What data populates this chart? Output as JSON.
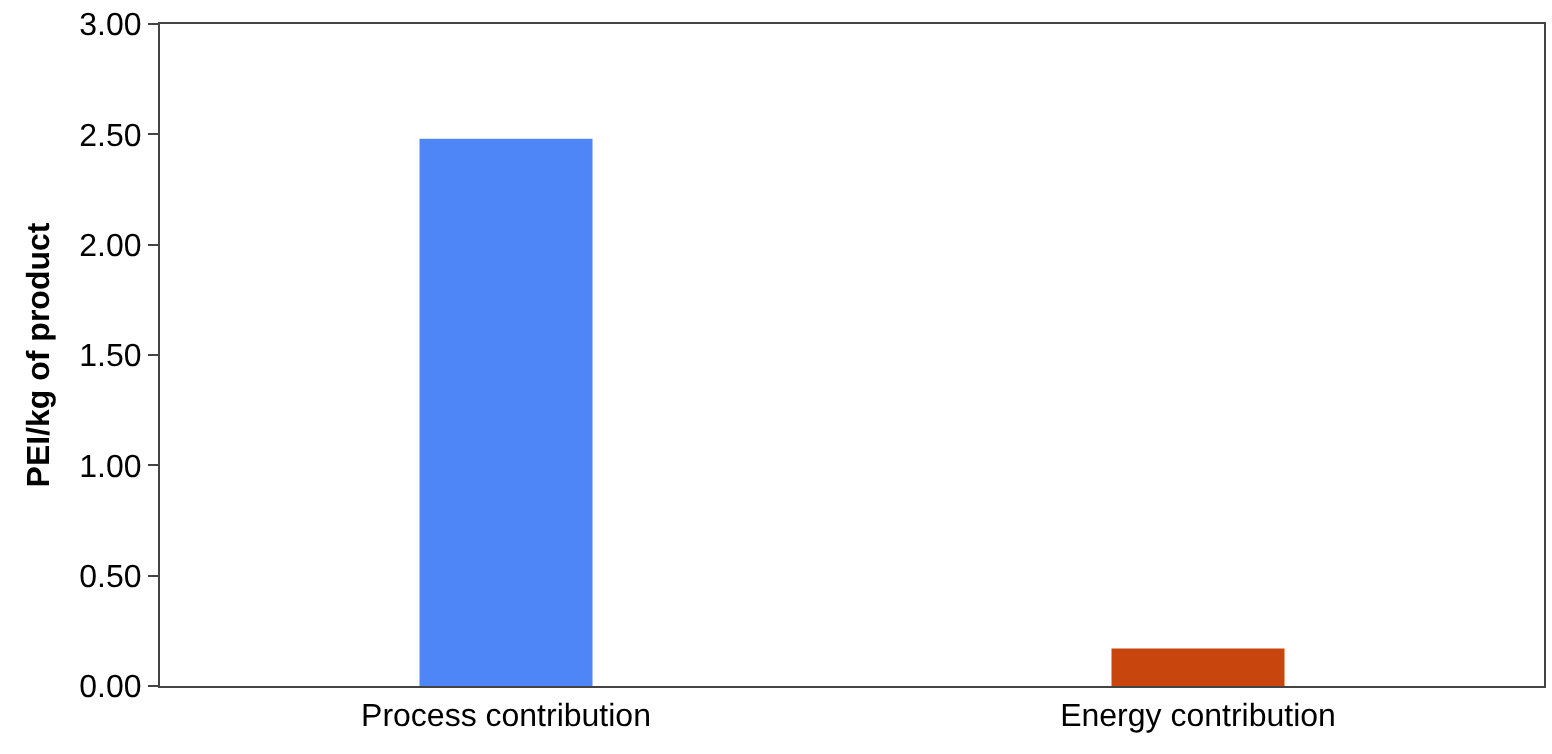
{
  "chart_data": {
    "type": "bar",
    "ylabel": "PEI/kg of product",
    "categories": [
      "Process contribution",
      "Energy contribution"
    ],
    "values": [
      2.48,
      0.17
    ],
    "colors": [
      "#4f86f7",
      "#c8460e"
    ],
    "ylim": [
      0,
      3
    ],
    "yticks": [
      {
        "value": 0,
        "label": "0.00"
      },
      {
        "value": 0.5,
        "label": "0.50"
      },
      {
        "value": 1,
        "label": "1.00"
      },
      {
        "value": 1.5,
        "label": "1.50"
      },
      {
        "value": 2,
        "label": "2.00"
      },
      {
        "value": 2.5,
        "label": "2.50"
      },
      {
        "value": 3,
        "label": "3.00"
      }
    ],
    "grid": false
  }
}
